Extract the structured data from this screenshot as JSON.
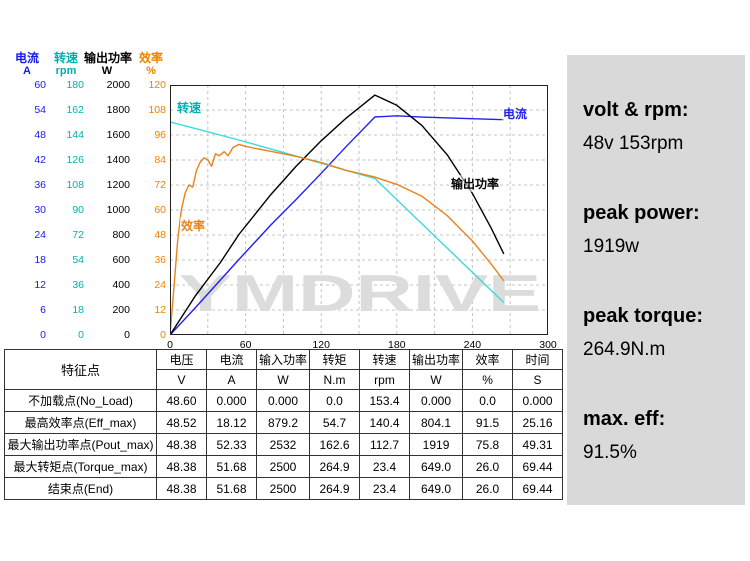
{
  "chart_data": {
    "type": "line",
    "watermark": "YMDRIVE",
    "x_axis": {
      "min": 0,
      "max": 300,
      "ticks": [
        0,
        60,
        120,
        180,
        240,
        300
      ]
    },
    "y_axes": [
      {
        "id": "current",
        "title": "电流",
        "unit": "A",
        "color": "#1a1aee",
        "max": 60,
        "ticks": [
          60,
          54,
          48,
          42,
          36,
          30,
          24,
          18,
          12,
          6,
          0
        ]
      },
      {
        "id": "rpm",
        "title": "转速",
        "unit": "rpm",
        "color": "#00b0b0",
        "max": 180,
        "ticks": [
          180,
          162,
          144,
          126,
          108,
          90,
          72,
          54,
          36,
          18,
          0
        ]
      },
      {
        "id": "power",
        "title": "输出功率",
        "unit": "W",
        "color": "#000000",
        "max": 2000,
        "ticks": [
          2000,
          1800,
          1600,
          1400,
          1200,
          1000,
          800,
          600,
          400,
          200,
          0
        ]
      },
      {
        "id": "eff",
        "title": "效率",
        "unit": "%",
        "color": "#f08200",
        "max": 120,
        "ticks": [
          120,
          108,
          96,
          84,
          72,
          60,
          48,
          36,
          24,
          12,
          0
        ]
      }
    ],
    "series": [
      {
        "name": "电流",
        "axis": "current",
        "color": "#2222ee",
        "points": [
          [
            0,
            0
          ],
          [
            20,
            6.5
          ],
          [
            40,
            13.2
          ],
          [
            54.7,
            18.12
          ],
          [
            80,
            26.4
          ],
          [
            100,
            32.5
          ],
          [
            120,
            38.8
          ],
          [
            140,
            45.3
          ],
          [
            162.6,
            52.33
          ],
          [
            180,
            52.6
          ],
          [
            200,
            52.3
          ],
          [
            230,
            52.0
          ],
          [
            264.9,
            51.68
          ]
        ]
      },
      {
        "name": "转速",
        "axis": "rpm",
        "color": "#3fd9d9",
        "points": [
          [
            0,
            153.4
          ],
          [
            30,
            146.3
          ],
          [
            54.7,
            140.4
          ],
          [
            80,
            134.0
          ],
          [
            100,
            128.8
          ],
          [
            120,
            123.7
          ],
          [
            140,
            118.5
          ],
          [
            162.6,
            112.7
          ],
          [
            180,
            97.5
          ],
          [
            200,
            80.0
          ],
          [
            220,
            62.6
          ],
          [
            240,
            45.1
          ],
          [
            264.9,
            23.4
          ]
        ]
      },
      {
        "name": "输出功率",
        "axis": "power",
        "color": "#000000",
        "points": [
          [
            0,
            0
          ],
          [
            20,
            311
          ],
          [
            40,
            580
          ],
          [
            54.7,
            804
          ],
          [
            80,
            1123
          ],
          [
            100,
            1349
          ],
          [
            120,
            1554
          ],
          [
            140,
            1737
          ],
          [
            162.6,
            1919
          ],
          [
            180,
            1838
          ],
          [
            200,
            1675
          ],
          [
            220,
            1442
          ],
          [
            240,
            1133
          ],
          [
            255,
            854
          ],
          [
            264.9,
            649
          ]
        ]
      },
      {
        "name": "效率",
        "axis": "eff",
        "color": "#e8831a",
        "points": [
          [
            0,
            0
          ],
          [
            3,
            22
          ],
          [
            6,
            45
          ],
          [
            9,
            60
          ],
          [
            12,
            68
          ],
          [
            15,
            72
          ],
          [
            18,
            71
          ],
          [
            21,
            79
          ],
          [
            24,
            83
          ],
          [
            27,
            85
          ],
          [
            30,
            84
          ],
          [
            33,
            81
          ],
          [
            36,
            87
          ],
          [
            39,
            86
          ],
          [
            43,
            88
          ],
          [
            46,
            86
          ],
          [
            50,
            90
          ],
          [
            54.7,
            91.5
          ],
          [
            60,
            90.6
          ],
          [
            70,
            89.3
          ],
          [
            80,
            88.2
          ],
          [
            100,
            85.8
          ],
          [
            120,
            82.8
          ],
          [
            140,
            79
          ],
          [
            162.6,
            75.8
          ],
          [
            180,
            72.3
          ],
          [
            200,
            66.6
          ],
          [
            220,
            57.3
          ],
          [
            240,
            45.1
          ],
          [
            255,
            34
          ],
          [
            264.9,
            26
          ]
        ]
      }
    ],
    "curve_labels": [
      {
        "text": "转速",
        "color": "#00b0b0",
        "x": 6,
        "y": 14
      },
      {
        "text": "效率",
        "color": "#e8831a",
        "x": 10,
        "y": 132
      },
      {
        "text": "输出功率",
        "color": "#000000",
        "x": 280,
        "y": 90
      },
      {
        "text": "电流",
        "color": "#2222ee",
        "x": 332,
        "y": 20
      }
    ]
  },
  "table": {
    "corner": "特征点",
    "columns": [
      {
        "label": "电压",
        "unit": "V"
      },
      {
        "label": "电流",
        "unit": "A"
      },
      {
        "label": "输入功率",
        "unit": "W"
      },
      {
        "label": "转矩",
        "unit": "N.m"
      },
      {
        "label": "转速",
        "unit": "rpm"
      },
      {
        "label": "输出功率",
        "unit": "W"
      },
      {
        "label": "效率",
        "unit": "%"
      },
      {
        "label": "时间",
        "unit": "S"
      }
    ],
    "rows": [
      {
        "name": "不加载点(No_Load)",
        "values": [
          "48.60",
          "0.000",
          "0.000",
          "0.0",
          "153.4",
          "0.000",
          "0.0",
          "0.000"
        ]
      },
      {
        "name": "最高效率点(Eff_max)",
        "values": [
          "48.52",
          "18.12",
          "879.2",
          "54.7",
          "140.4",
          "804.1",
          "91.5",
          "25.16"
        ]
      },
      {
        "name": "最大输出功率点(Pout_max)",
        "values": [
          "48.38",
          "52.33",
          "2532",
          "162.6",
          "112.7",
          "1919",
          "75.8",
          "49.31"
        ]
      },
      {
        "name": "最大转矩点(Torque_max)",
        "values": [
          "48.38",
          "51.68",
          "2500",
          "264.9",
          "23.4",
          "649.0",
          "26.0",
          "69.44"
        ]
      },
      {
        "name": "结束点(End)",
        "values": [
          "48.38",
          "51.68",
          "2500",
          "264.9",
          "23.4",
          "649.0",
          "26.0",
          "69.44"
        ]
      }
    ]
  },
  "summary": {
    "items": [
      {
        "label": "volt & rpm:",
        "value": "48v 153rpm"
      },
      {
        "label": "peak power:",
        "value": "1919w"
      },
      {
        "label": "peak torque:",
        "value": "264.9N.m"
      },
      {
        "label": "max. eff:",
        "value": "91.5%"
      }
    ]
  }
}
